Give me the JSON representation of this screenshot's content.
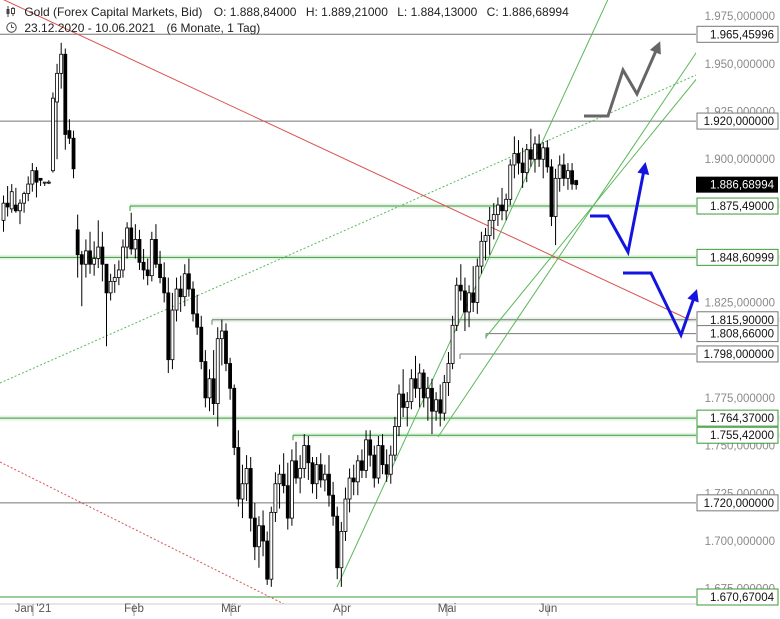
{
  "header": {
    "title": "Gold (Forex Capital Markets, Bid)",
    "open": "O: 1.888,84000",
    "high": "H: 1.889,21000",
    "low": "L: 1.884,13000",
    "close": "C: 1.886,68994",
    "range": "23.12.2020 - 10.06.2021",
    "period": "(6 Monate, 1 Tag)"
  },
  "chart_data": {
    "type": "candlestick",
    "title": "Gold (Forex Capital Markets, Bid)",
    "y_axis": {
      "range": [
        1667,
        1985
      ],
      "ticks": [
        {
          "value": 1975,
          "label": "1.975,000000"
        },
        {
          "value": 1950,
          "label": "1.950,000000"
        },
        {
          "value": 1925,
          "label": "1.925,000000"
        },
        {
          "value": 1900,
          "label": "1.900,000000"
        },
        {
          "value": 1825,
          "label": "1.825,000000"
        },
        {
          "value": 1775,
          "label": "1.775,000000"
        },
        {
          "value": 1750,
          "label": "1.750,000000"
        },
        {
          "value": 1725,
          "label": "1.725,000000"
        },
        {
          "value": 1700,
          "label": "1.700,000000"
        },
        {
          "value": 1675,
          "label": "1.675,000000"
        }
      ]
    },
    "x_axis": {
      "months": [
        {
          "label": "Jan '21",
          "date": "2021-01-01"
        },
        {
          "label": "Feb",
          "date": "2021-02-01"
        },
        {
          "label": "Mär",
          "date": "2021-03-01"
        },
        {
          "label": "Apr",
          "date": "2021-04-01"
        },
        {
          "label": "Mai",
          "date": "2021-05-01"
        },
        {
          "label": "Jun",
          "date": "2021-06-01"
        }
      ]
    },
    "levels": [
      {
        "value": 1965.45996,
        "label": "1.965,45996",
        "kind": "resistance"
      },
      {
        "value": 1920.0,
        "label": "1.920,000000",
        "kind": "resistance"
      },
      {
        "value": 1886.68994,
        "label": "1.886,68994",
        "kind": "last"
      },
      {
        "value": 1875.49,
        "label": "1.875,49000",
        "kind": "support"
      },
      {
        "value": 1848.60999,
        "label": "1.848,60999",
        "kind": "support"
      },
      {
        "value": 1815.9,
        "label": "1.815,90000",
        "kind": "support"
      },
      {
        "value": 1808.66,
        "label": "1.808,66000",
        "kind": "support"
      },
      {
        "value": 1798.0,
        "label": "1.798,000000",
        "kind": "support"
      },
      {
        "value": 1764.37,
        "label": "1.764,37000",
        "kind": "support"
      },
      {
        "value": 1755.42,
        "label": "1.755,42000",
        "kind": "support"
      },
      {
        "value": 1720.0,
        "label": "1.720,000000",
        "kind": "support"
      },
      {
        "value": 1670.67004,
        "label": "1.670,67004",
        "kind": "support"
      }
    ],
    "candles": [
      {
        "o": 1868,
        "h": 1881,
        "l": 1862,
        "c": 1877
      },
      {
        "o": 1877,
        "h": 1886,
        "l": 1870,
        "c": 1875
      },
      {
        "o": 1874,
        "h": 1887,
        "l": 1872,
        "c": 1883
      },
      {
        "o": 1876,
        "h": 1885,
        "l": 1872,
        "c": 1873
      },
      {
        "o": 1873,
        "h": 1879,
        "l": 1866,
        "c": 1877
      },
      {
        "o": 1877,
        "h": 1883,
        "l": 1872,
        "c": 1882
      },
      {
        "o": 1882,
        "h": 1891,
        "l": 1878,
        "c": 1887
      },
      {
        "o": 1887,
        "h": 1898,
        "l": 1883,
        "c": 1894
      },
      {
        "o": 1894,
        "h": 1896,
        "l": 1880,
        "c": 1888
      },
      {
        "o": 1890,
        "h": 1890,
        "l": 1886,
        "c": 1889
      },
      {
        "o": 1888,
        "h": 1888,
        "l": 1886,
        "c": 1888
      },
      {
        "o": 1888,
        "h": 1889,
        "l": 1887,
        "c": 1888
      },
      {
        "o": 1894,
        "h": 1935,
        "l": 1893,
        "c": 1932
      },
      {
        "o": 1930,
        "h": 1950,
        "l": 1900,
        "c": 1945
      },
      {
        "o": 1945,
        "h": 1961,
        "l": 1937,
        "c": 1955
      },
      {
        "o": 1955,
        "h": 1958,
        "l": 1905,
        "c": 1913
      },
      {
        "o": 1915,
        "h": 1921,
        "l": 1908,
        "c": 1911
      },
      {
        "o": 1911,
        "h": 1915,
        "l": 1890,
        "c": 1895
      },
      {
        "o": 1863,
        "h": 1871,
        "l": 1838,
        "c": 1850
      },
      {
        "o": 1850,
        "h": 1852,
        "l": 1823,
        "c": 1845
      },
      {
        "o": 1845,
        "h": 1858,
        "l": 1838,
        "c": 1852
      },
      {
        "o": 1852,
        "h": 1862,
        "l": 1840,
        "c": 1845
      },
      {
        "o": 1845,
        "h": 1857,
        "l": 1839,
        "c": 1848
      },
      {
        "o": 1848,
        "h": 1868,
        "l": 1843,
        "c": 1854
      },
      {
        "o": 1854,
        "h": 1862,
        "l": 1836,
        "c": 1845
      },
      {
        "o": 1845,
        "h": 1845,
        "l": 1802,
        "c": 1830
      },
      {
        "o": 1830,
        "h": 1840,
        "l": 1826,
        "c": 1836
      },
      {
        "o": 1836,
        "h": 1845,
        "l": 1830,
        "c": 1838
      },
      {
        "o": 1838,
        "h": 1847,
        "l": 1834,
        "c": 1842
      },
      {
        "o": 1842,
        "h": 1858,
        "l": 1838,
        "c": 1854
      },
      {
        "o": 1854,
        "h": 1867,
        "l": 1848,
        "c": 1864
      },
      {
        "o": 1864,
        "h": 1872,
        "l": 1850,
        "c": 1853
      },
      {
        "o": 1853,
        "h": 1866,
        "l": 1848,
        "c": 1858
      },
      {
        "o": 1858,
        "h": 1863,
        "l": 1842,
        "c": 1846
      },
      {
        "o": 1846,
        "h": 1853,
        "l": 1837,
        "c": 1842
      },
      {
        "o": 1842,
        "h": 1848,
        "l": 1834,
        "c": 1839
      },
      {
        "o": 1839,
        "h": 1862,
        "l": 1836,
        "c": 1858
      },
      {
        "o": 1858,
        "h": 1866,
        "l": 1843,
        "c": 1845
      },
      {
        "o": 1845,
        "h": 1852,
        "l": 1835,
        "c": 1838
      },
      {
        "o": 1838,
        "h": 1846,
        "l": 1825,
        "c": 1830
      },
      {
        "o": 1830,
        "h": 1838,
        "l": 1788,
        "c": 1795
      },
      {
        "o": 1795,
        "h": 1830,
        "l": 1790,
        "c": 1821
      },
      {
        "o": 1821,
        "h": 1838,
        "l": 1815,
        "c": 1832
      },
      {
        "o": 1832,
        "h": 1839,
        "l": 1820,
        "c": 1828
      },
      {
        "o": 1828,
        "h": 1845,
        "l": 1823,
        "c": 1840
      },
      {
        "o": 1840,
        "h": 1848,
        "l": 1828,
        "c": 1832
      },
      {
        "o": 1832,
        "h": 1836,
        "l": 1815,
        "c": 1819
      },
      {
        "o": 1819,
        "h": 1829,
        "l": 1808,
        "c": 1812
      },
      {
        "o": 1812,
        "h": 1818,
        "l": 1790,
        "c": 1794
      },
      {
        "o": 1794,
        "h": 1800,
        "l": 1770,
        "c": 1775
      },
      {
        "o": 1775,
        "h": 1790,
        "l": 1768,
        "c": 1785
      },
      {
        "o": 1785,
        "h": 1800,
        "l": 1766,
        "c": 1772
      },
      {
        "o": 1772,
        "h": 1812,
        "l": 1760,
        "c": 1806
      },
      {
        "o": 1806,
        "h": 1816,
        "l": 1792,
        "c": 1810
      },
      {
        "o": 1810,
        "h": 1814,
        "l": 1789,
        "c": 1793
      },
      {
        "o": 1793,
        "h": 1796,
        "l": 1774,
        "c": 1780
      },
      {
        "o": 1780,
        "h": 1782,
        "l": 1745,
        "c": 1749
      },
      {
        "o": 1749,
        "h": 1758,
        "l": 1718,
        "c": 1722
      },
      {
        "o": 1722,
        "h": 1740,
        "l": 1712,
        "c": 1730
      },
      {
        "o": 1730,
        "h": 1745,
        "l": 1721,
        "c": 1738
      },
      {
        "o": 1738,
        "h": 1744,
        "l": 1705,
        "c": 1712
      },
      {
        "o": 1712,
        "h": 1720,
        "l": 1690,
        "c": 1697
      },
      {
        "o": 1697,
        "h": 1713,
        "l": 1686,
        "c": 1708
      },
      {
        "o": 1708,
        "h": 1716,
        "l": 1692,
        "c": 1700
      },
      {
        "o": 1700,
        "h": 1705,
        "l": 1677,
        "c": 1680
      },
      {
        "o": 1680,
        "h": 1718,
        "l": 1676,
        "c": 1715
      },
      {
        "o": 1715,
        "h": 1736,
        "l": 1710,
        "c": 1730
      },
      {
        "o": 1730,
        "h": 1740,
        "l": 1717,
        "c": 1735
      },
      {
        "o": 1735,
        "h": 1746,
        "l": 1725,
        "c": 1729
      },
      {
        "o": 1729,
        "h": 1741,
        "l": 1706,
        "c": 1712
      },
      {
        "o": 1712,
        "h": 1748,
        "l": 1708,
        "c": 1742
      },
      {
        "o": 1742,
        "h": 1752,
        "l": 1730,
        "c": 1733
      },
      {
        "o": 1733,
        "h": 1745,
        "l": 1725,
        "c": 1738
      },
      {
        "o": 1738,
        "h": 1756,
        "l": 1733,
        "c": 1750
      },
      {
        "o": 1750,
        "h": 1755,
        "l": 1732,
        "c": 1741
      },
      {
        "o": 1741,
        "h": 1744,
        "l": 1725,
        "c": 1730
      },
      {
        "o": 1730,
        "h": 1744,
        "l": 1722,
        "c": 1740
      },
      {
        "o": 1740,
        "h": 1746,
        "l": 1728,
        "c": 1732
      },
      {
        "o": 1732,
        "h": 1740,
        "l": 1726,
        "c": 1735
      },
      {
        "o": 1735,
        "h": 1745,
        "l": 1718,
        "c": 1724
      },
      {
        "o": 1724,
        "h": 1731,
        "l": 1708,
        "c": 1713
      },
      {
        "o": 1713,
        "h": 1718,
        "l": 1680,
        "c": 1686
      },
      {
        "o": 1686,
        "h": 1710,
        "l": 1676,
        "c": 1705
      },
      {
        "o": 1705,
        "h": 1728,
        "l": 1700,
        "c": 1722
      },
      {
        "o": 1722,
        "h": 1738,
        "l": 1715,
        "c": 1733
      },
      {
        "o": 1733,
        "h": 1740,
        "l": 1724,
        "c": 1731
      },
      {
        "o": 1731,
        "h": 1745,
        "l": 1724,
        "c": 1742
      },
      {
        "o": 1742,
        "h": 1748,
        "l": 1733,
        "c": 1737
      },
      {
        "o": 1737,
        "h": 1758,
        "l": 1733,
        "c": 1753
      },
      {
        "o": 1753,
        "h": 1758,
        "l": 1739,
        "c": 1745
      },
      {
        "o": 1745,
        "h": 1750,
        "l": 1728,
        "c": 1733
      },
      {
        "o": 1733,
        "h": 1755,
        "l": 1730,
        "c": 1750
      },
      {
        "o": 1750,
        "h": 1756,
        "l": 1735,
        "c": 1740
      },
      {
        "o": 1740,
        "h": 1748,
        "l": 1731,
        "c": 1735
      },
      {
        "o": 1735,
        "h": 1750,
        "l": 1730,
        "c": 1745
      },
      {
        "o": 1745,
        "h": 1765,
        "l": 1742,
        "c": 1760
      },
      {
        "o": 1760,
        "h": 1782,
        "l": 1755,
        "c": 1777
      },
      {
        "o": 1777,
        "h": 1790,
        "l": 1765,
        "c": 1770
      },
      {
        "o": 1770,
        "h": 1778,
        "l": 1760,
        "c": 1773
      },
      {
        "o": 1773,
        "h": 1790,
        "l": 1769,
        "c": 1785
      },
      {
        "o": 1785,
        "h": 1797,
        "l": 1775,
        "c": 1780
      },
      {
        "o": 1780,
        "h": 1793,
        "l": 1770,
        "c": 1788
      },
      {
        "o": 1788,
        "h": 1790,
        "l": 1770,
        "c": 1775
      },
      {
        "o": 1775,
        "h": 1786,
        "l": 1763,
        "c": 1780
      },
      {
        "o": 1780,
        "h": 1785,
        "l": 1756,
        "c": 1768
      },
      {
        "o": 1768,
        "h": 1778,
        "l": 1763,
        "c": 1774
      },
      {
        "o": 1774,
        "h": 1782,
        "l": 1760,
        "c": 1767
      },
      {
        "o": 1767,
        "h": 1787,
        "l": 1763,
        "c": 1783
      },
      {
        "o": 1783,
        "h": 1799,
        "l": 1776,
        "c": 1793
      },
      {
        "o": 1793,
        "h": 1818,
        "l": 1790,
        "c": 1813
      },
      {
        "o": 1813,
        "h": 1838,
        "l": 1810,
        "c": 1834
      },
      {
        "o": 1834,
        "h": 1845,
        "l": 1826,
        "c": 1831
      },
      {
        "o": 1831,
        "h": 1838,
        "l": 1810,
        "c": 1820
      },
      {
        "o": 1820,
        "h": 1834,
        "l": 1812,
        "c": 1830
      },
      {
        "o": 1830,
        "h": 1844,
        "l": 1820,
        "c": 1825
      },
      {
        "o": 1825,
        "h": 1848,
        "l": 1819,
        "c": 1844
      },
      {
        "o": 1844,
        "h": 1862,
        "l": 1840,
        "c": 1857
      },
      {
        "o": 1857,
        "h": 1864,
        "l": 1847,
        "c": 1860
      },
      {
        "o": 1860,
        "h": 1875,
        "l": 1850,
        "c": 1868
      },
      {
        "o": 1868,
        "h": 1877,
        "l": 1858,
        "c": 1871
      },
      {
        "o": 1871,
        "h": 1880,
        "l": 1865,
        "c": 1876
      },
      {
        "o": 1876,
        "h": 1885,
        "l": 1868,
        "c": 1873
      },
      {
        "o": 1873,
        "h": 1882,
        "l": 1868,
        "c": 1879
      },
      {
        "o": 1879,
        "h": 1900,
        "l": 1876,
        "c": 1897
      },
      {
        "o": 1897,
        "h": 1912,
        "l": 1890,
        "c": 1903
      },
      {
        "o": 1903,
        "h": 1910,
        "l": 1892,
        "c": 1898
      },
      {
        "o": 1898,
        "h": 1906,
        "l": 1885,
        "c": 1893
      },
      {
        "o": 1893,
        "h": 1908,
        "l": 1888,
        "c": 1905
      },
      {
        "o": 1905,
        "h": 1916,
        "l": 1896,
        "c": 1900
      },
      {
        "o": 1900,
        "h": 1912,
        "l": 1893,
        "c": 1908
      },
      {
        "o": 1908,
        "h": 1913,
        "l": 1896,
        "c": 1900
      },
      {
        "o": 1900,
        "h": 1909,
        "l": 1890,
        "c": 1906
      },
      {
        "o": 1906,
        "h": 1910,
        "l": 1893,
        "c": 1896
      },
      {
        "o": 1896,
        "h": 1900,
        "l": 1865,
        "c": 1870
      },
      {
        "o": 1870,
        "h": 1895,
        "l": 1855,
        "c": 1890
      },
      {
        "o": 1890,
        "h": 1902,
        "l": 1883,
        "c": 1897
      },
      {
        "o": 1897,
        "h": 1903,
        "l": 1886,
        "c": 1890
      },
      {
        "o": 1890,
        "h": 1898,
        "l": 1884,
        "c": 1894
      },
      {
        "o": 1894,
        "h": 1898,
        "l": 1884,
        "c": 1887
      },
      {
        "o": 1888.84,
        "h": 1889.21,
        "l": 1884.13,
        "c": 1886.69
      }
    ]
  },
  "colors": {
    "grey_line": "#777777",
    "support_line": "#3a9a3a",
    "support_band": "#cfe9cf",
    "trend_green": "#5cb85c",
    "trend_red": "#d9534f",
    "projection_blue": "#1414e0",
    "projection_grey": "#666666",
    "last_price_bg": "#000000"
  }
}
